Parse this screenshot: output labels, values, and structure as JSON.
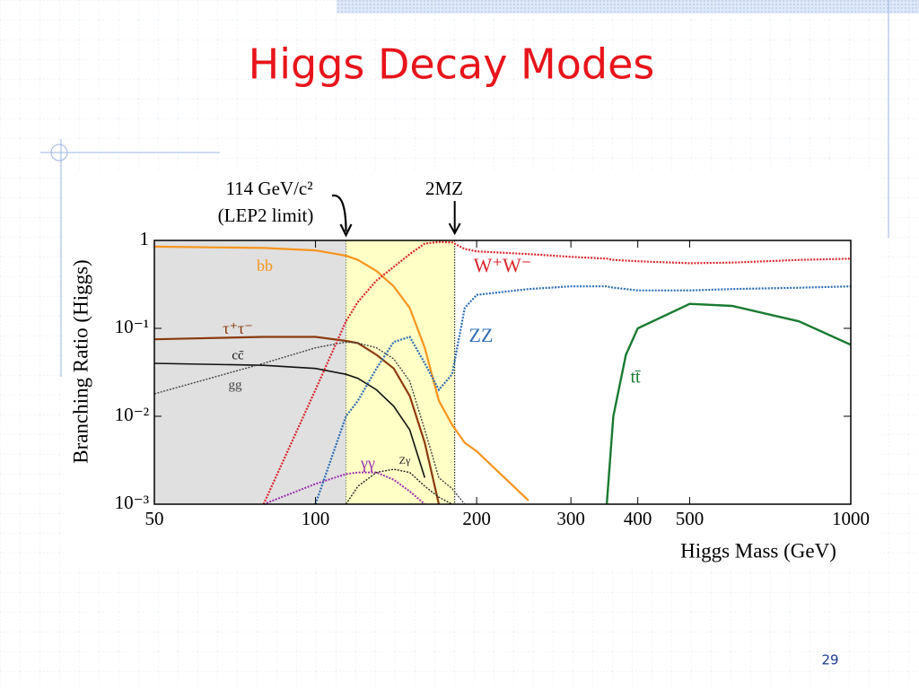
{
  "slide": {
    "title": "Higgs Decay Modes",
    "page_number": "29"
  },
  "chart_data": {
    "type": "line",
    "x_label": "Higgs Mass (GeV)",
    "y_label": "Branching Ratio (Higgs)",
    "log_x": true,
    "log_y": true,
    "xlim": [
      50,
      1000
    ],
    "ylim": [
      0.001,
      1
    ],
    "xticks": [
      50,
      100,
      200,
      300,
      400,
      500,
      1000
    ],
    "yticks": [
      {
        "value": 0.001,
        "label": "10⁻³"
      },
      {
        "value": 0.01,
        "label": "10⁻²"
      },
      {
        "value": 0.1,
        "label": "10⁻¹"
      },
      1
    ],
    "regions": [
      {
        "from": 50,
        "to": 114,
        "color": "#e0e0e0"
      },
      {
        "from": 114,
        "to": 182,
        "color": "#ffffc6"
      }
    ],
    "annotations": [
      {
        "text": "114 GeV/c²",
        "x": 114
      },
      {
        "text": "(LEP2 limit)",
        "x": 114
      },
      {
        "text": "2MZ",
        "x": 182
      }
    ],
    "x": [
      50,
      80,
      100,
      114,
      120,
      130,
      140,
      150,
      160,
      170,
      180,
      190,
      200,
      250,
      300,
      350,
      360,
      380,
      400,
      500,
      600,
      800,
      1000
    ],
    "series": [
      {
        "name": "bb",
        "color": "#f7941d",
        "values": [
          0.85,
          0.82,
          0.77,
          0.67,
          0.6,
          0.45,
          0.3,
          0.17,
          0.06,
          0.015,
          0.008,
          0.005,
          0.004,
          0.0011,
          null,
          null,
          null,
          null,
          null,
          null,
          null,
          null,
          null
        ]
      },
      {
        "name": "τ⁺τ⁻",
        "color": "#8b3a0f",
        "values": [
          0.075,
          0.08,
          0.08,
          0.072,
          0.068,
          0.05,
          0.035,
          0.017,
          0.005,
          0.001,
          null,
          null,
          null,
          null,
          null,
          null,
          null,
          null,
          null,
          null,
          null,
          null,
          null
        ]
      },
      {
        "name": "cc̄",
        "color": "#111111",
        "values": [
          0.04,
          0.038,
          0.035,
          0.03,
          0.027,
          0.02,
          0.013,
          0.007,
          0.002,
          null,
          null,
          null,
          null,
          null,
          null,
          null,
          null,
          null,
          null,
          null,
          null,
          null,
          null
        ]
      },
      {
        "name": "gg",
        "color": "#444444",
        "values": [
          0.018,
          0.04,
          0.06,
          0.07,
          0.068,
          0.06,
          0.045,
          0.025,
          0.007,
          0.002,
          0.0015,
          0.001,
          null,
          null,
          null,
          null,
          null,
          null,
          null,
          null,
          null,
          null,
          null
        ]
      },
      {
        "name": "γγ",
        "color": "#9b2fae",
        "values": [
          null,
          0.001,
          0.0017,
          0.0022,
          0.0023,
          0.0023,
          0.0019,
          0.0014,
          0.001,
          null,
          null,
          null,
          null,
          null,
          null,
          null,
          null,
          null,
          null,
          null,
          null,
          null,
          null
        ]
      },
      {
        "name": "Zγ",
        "color": "#222222",
        "values": [
          null,
          null,
          null,
          0.001,
          0.0016,
          0.0023,
          0.0025,
          0.0023,
          0.0016,
          0.0012,
          0.001,
          null,
          null,
          null,
          null,
          null,
          null,
          null,
          null,
          null,
          null,
          null,
          null
        ]
      },
      {
        "name": "W⁺W⁻",
        "color": "#d9262e",
        "values": [
          null,
          0.001,
          0.02,
          0.12,
          0.2,
          0.35,
          0.5,
          0.7,
          0.92,
          0.96,
          0.95,
          0.8,
          0.75,
          0.7,
          0.65,
          0.62,
          0.6,
          0.59,
          0.58,
          0.55,
          0.56,
          0.6,
          0.62
        ]
      },
      {
        "name": "ZZ",
        "color": "#2e6db4",
        "values": [
          null,
          null,
          0.001,
          0.01,
          0.015,
          0.035,
          0.07,
          0.08,
          0.04,
          0.02,
          0.03,
          0.17,
          0.24,
          0.28,
          0.3,
          0.3,
          0.29,
          0.28,
          0.27,
          0.27,
          0.28,
          0.29,
          0.3
        ]
      },
      {
        "name": "tt̄",
        "color": "#1a7a32",
        "values": [
          null,
          null,
          null,
          null,
          null,
          null,
          null,
          null,
          null,
          null,
          null,
          null,
          null,
          null,
          null,
          0.001,
          0.01,
          0.05,
          0.1,
          0.19,
          0.18,
          0.12,
          0.065
        ]
      }
    ]
  }
}
